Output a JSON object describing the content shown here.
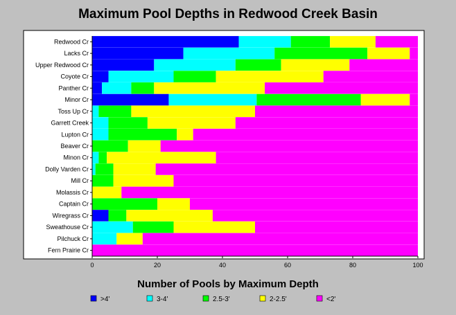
{
  "chart_data": {
    "type": "bar",
    "orientation": "horizontal",
    "stacked": true,
    "title": "Maximum Pool Depths in Redwood Creek Basin",
    "xlabel": "Number of Pools by Maximum Depth",
    "ylabel": "",
    "xlim": [
      0,
      100
    ],
    "x_ticks": [
      0,
      20,
      40,
      60,
      80,
      100
    ],
    "grid": false,
    "legend_position": "bottom",
    "categories": [
      "Redwood Cr",
      "Lacks Cr",
      "Upper Redwood Cr",
      "Coyote Cr",
      "Panther Cr",
      "Minor Cr",
      "Toss Up Cr",
      "Garrett Creek",
      "Lupton Cr",
      "Beaver Cr",
      "Minon Cr",
      "Dolly Varden Cr",
      "Mill Cr",
      "Molassis Cr",
      "Captain Cr",
      "Wiregrass Cr",
      "Sweathouse Cr",
      "Pilchuck Cr",
      "Fern Prairie Cr"
    ],
    "series": [
      {
        "name": ">4'",
        "color": "#0000ff",
        "values": [
          45,
          28,
          19,
          5,
          3,
          23.5,
          0,
          0,
          0,
          0,
          0,
          0,
          0,
          0,
          0,
          5,
          0,
          0,
          0
        ]
      },
      {
        "name": "3-4'",
        "color": "#00ffff",
        "values": [
          16,
          28,
          25,
          20,
          9,
          27,
          2,
          5,
          5,
          0,
          2,
          1,
          0,
          0,
          0,
          0,
          12.5,
          7.5,
          0
        ]
      },
      {
        "name": "2.5-3'",
        "color": "#00ff00",
        "values": [
          12,
          28.5,
          14,
          13,
          7,
          32,
          10,
          12,
          21,
          11,
          2.5,
          5.5,
          6.5,
          0,
          20,
          5.5,
          12.5,
          0,
          0
        ]
      },
      {
        "name": "2-2.5'",
        "color": "#ffff00",
        "values": [
          14,
          13,
          21,
          33,
          34,
          15,
          38,
          27,
          5,
          10,
          33.5,
          13,
          18.5,
          9,
          10,
          26.5,
          25,
          8,
          0
        ]
      },
      {
        "name": "<2'",
        "color": "#ff00ff",
        "values": [
          13,
          2.5,
          21,
          29,
          47,
          2.5,
          50,
          56,
          69,
          79,
          62,
          80.5,
          75,
          91,
          70,
          63,
          50,
          84.5,
          100
        ]
      }
    ]
  }
}
